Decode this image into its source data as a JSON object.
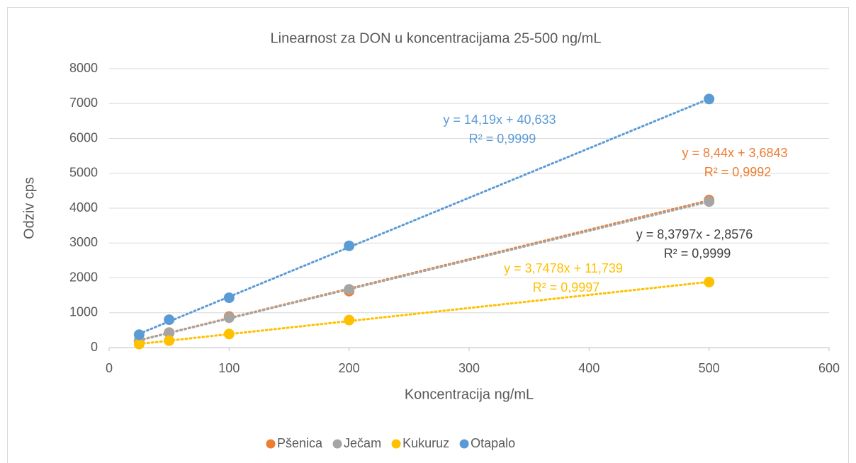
{
  "chart_data": {
    "type": "scatter",
    "title": "Linearnost za DON u koncentracijama 25-500 ng/mL",
    "x_label": "Koncentracija ng/mL",
    "y_label": "Odziv cps",
    "x": [
      25,
      50,
      100,
      200,
      500
    ],
    "series": [
      {
        "name": "Pšenica",
        "color": "#ed7d31",
        "values": [
          200,
          430,
          890,
          1620,
          4230
        ],
        "trendline": {
          "slope": 8.44,
          "intercept": 3.6843,
          "equation": "y = 8,44x + 3,6843",
          "r2": "R² = 0,9992",
          "label_color": "#ed7d31"
        }
      },
      {
        "name": "Ječam",
        "color": "#a5a5a5",
        "values": [
          190,
          420,
          860,
          1670,
          4190
        ],
        "trendline": {
          "slope": 8.3797,
          "intercept": -2.8576,
          "equation": "y = 8,3797x - 2,8576",
          "r2": "R² = 0,9999",
          "label_color": "#404040"
        }
      },
      {
        "name": "Kukuruz",
        "color": "#ffc000",
        "values": [
          100,
          200,
          390,
          790,
          1880
        ],
        "trendline": {
          "slope": 3.7478,
          "intercept": 11.739,
          "equation": "y = 3,7478x + 11,739",
          "r2": "R² = 0,9997",
          "label_color": "#ffc000"
        }
      },
      {
        "name": "Otapalo",
        "color": "#5b9bd5",
        "values": [
          370,
          800,
          1430,
          2920,
          7130
        ],
        "trendline": {
          "slope": 14.19,
          "intercept": 40.633,
          "equation": "y = 14,19x + 40,633",
          "r2": "R² = 0,9999",
          "label_color": "#5b9bd5"
        }
      }
    ],
    "xlim": [
      0,
      600
    ],
    "xticks": [
      0,
      100,
      200,
      300,
      400,
      500,
      600
    ],
    "ylim": [
      0,
      8000
    ],
    "yticks": [
      0,
      1000,
      2000,
      3000,
      4000,
      5000,
      6000,
      7000,
      8000
    ],
    "grid": true,
    "legend": "bottom"
  }
}
